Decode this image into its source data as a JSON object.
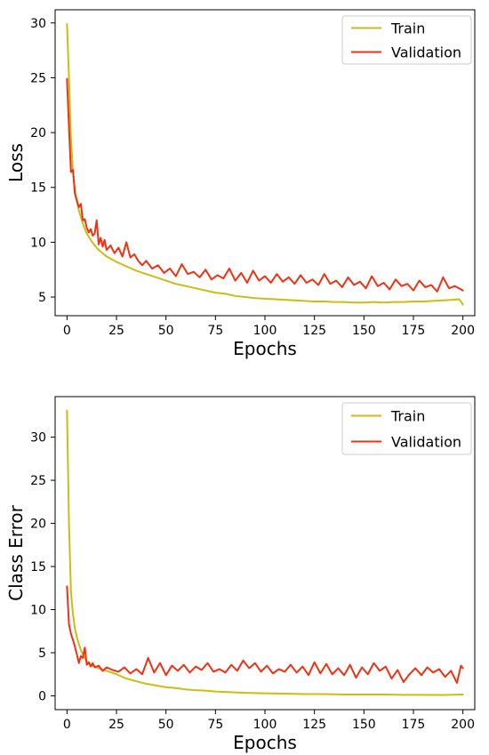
{
  "chart_data": [
    {
      "type": "line",
      "title": "",
      "xlabel": "Epochs",
      "ylabel": "Loss",
      "xlim": [
        -6,
        206
      ],
      "ylim": [
        3.3,
        31.2
      ],
      "xticks": [
        0,
        25,
        50,
        75,
        100,
        125,
        150,
        175,
        200
      ],
      "yticks": [
        5,
        10,
        15,
        20,
        25,
        30
      ],
      "legend_position": "top-right",
      "grid": false,
      "series": [
        {
          "name": "Train",
          "color": "#c8be14",
          "x": [
            0,
            1,
            2,
            3,
            4,
            5,
            6,
            7,
            8,
            9,
            10,
            12,
            14,
            16,
            18,
            20,
            25,
            30,
            35,
            40,
            45,
            50,
            55,
            60,
            65,
            70,
            75,
            80,
            85,
            90,
            95,
            100,
            105,
            110,
            115,
            120,
            125,
            130,
            135,
            140,
            145,
            150,
            155,
            160,
            165,
            170,
            175,
            180,
            185,
            190,
            195,
            198,
            199,
            200
          ],
          "y": [
            29.9,
            25.0,
            19.5,
            16.5,
            14.8,
            13.7,
            12.9,
            12.3,
            11.7,
            11.2,
            10.8,
            10.2,
            9.7,
            9.3,
            9.0,
            8.7,
            8.2,
            7.8,
            7.4,
            7.1,
            6.8,
            6.5,
            6.2,
            6.0,
            5.8,
            5.6,
            5.4,
            5.3,
            5.1,
            5.0,
            4.9,
            4.85,
            4.8,
            4.75,
            4.7,
            4.65,
            4.6,
            4.6,
            4.55,
            4.55,
            4.5,
            4.5,
            4.55,
            4.5,
            4.55,
            4.55,
            4.6,
            4.6,
            4.65,
            4.7,
            4.75,
            4.8,
            4.6,
            4.3
          ]
        },
        {
          "name": "Validation",
          "color": "#f03214",
          "x": [
            0,
            1,
            2,
            3,
            4,
            5,
            6,
            7,
            8,
            9,
            10,
            11,
            12,
            13,
            14,
            15,
            16,
            17,
            18,
            19,
            20,
            22,
            24,
            26,
            28,
            30,
            32,
            34,
            36,
            38,
            40,
            43,
            46,
            49,
            52,
            55,
            58,
            61,
            64,
            67,
            70,
            73,
            76,
            79,
            82,
            85,
            88,
            91,
            94,
            97,
            100,
            103,
            106,
            109,
            112,
            115,
            118,
            121,
            124,
            127,
            130,
            133,
            136,
            139,
            142,
            145,
            148,
            151,
            154,
            157,
            160,
            163,
            166,
            169,
            172,
            175,
            178,
            181,
            184,
            187,
            190,
            193,
            196,
            199,
            200
          ],
          "y": [
            24.9,
            20.5,
            16.4,
            16.6,
            14.4,
            13.8,
            13.2,
            13.5,
            12.0,
            12.1,
            11.3,
            10.9,
            11.2,
            10.6,
            10.8,
            12.0,
            9.8,
            10.4,
            9.6,
            10.2,
            9.3,
            9.7,
            9.0,
            9.5,
            8.7,
            10.0,
            8.6,
            8.9,
            8.3,
            7.9,
            8.3,
            7.6,
            7.9,
            7.2,
            7.6,
            6.9,
            8.0,
            7.1,
            7.3,
            6.8,
            7.5,
            6.6,
            7.0,
            6.7,
            7.6,
            6.5,
            7.2,
            6.3,
            7.4,
            6.5,
            6.9,
            6.3,
            7.1,
            6.4,
            6.8,
            6.2,
            7.0,
            6.3,
            6.6,
            6.1,
            7.1,
            6.2,
            6.5,
            5.9,
            6.8,
            6.1,
            6.4,
            5.8,
            6.9,
            6.0,
            6.3,
            5.7,
            6.6,
            6.0,
            6.2,
            5.6,
            6.5,
            5.9,
            6.1,
            5.5,
            6.8,
            5.8,
            6.0,
            5.7,
            5.6
          ]
        }
      ]
    },
    {
      "type": "line",
      "title": "",
      "xlabel": "Epochs",
      "ylabel": "Class Error",
      "xlim": [
        -6,
        206
      ],
      "ylim": [
        -1.6,
        34.7
      ],
      "xticks": [
        0,
        25,
        50,
        75,
        100,
        125,
        150,
        175,
        200
      ],
      "yticks": [
        0,
        5,
        10,
        15,
        20,
        25,
        30
      ],
      "legend_position": "top-right",
      "grid": false,
      "series": [
        {
          "name": "Train",
          "color": "#c8be14",
          "x": [
            0,
            1,
            2,
            3,
            4,
            5,
            6,
            7,
            8,
            9,
            10,
            12,
            14,
            16,
            18,
            20,
            25,
            30,
            35,
            40,
            45,
            50,
            55,
            60,
            65,
            70,
            75,
            80,
            85,
            90,
            100,
            110,
            120,
            130,
            140,
            150,
            160,
            170,
            180,
            190,
            200
          ],
          "y": [
            33.1,
            20.0,
            12.1,
            9.5,
            7.8,
            6.8,
            6.0,
            5.3,
            4.8,
            4.4,
            4.0,
            3.6,
            3.4,
            3.2,
            3.0,
            2.9,
            2.5,
            2.0,
            1.7,
            1.4,
            1.2,
            1.0,
            0.9,
            0.75,
            0.65,
            0.6,
            0.5,
            0.45,
            0.4,
            0.35,
            0.3,
            0.25,
            0.2,
            0.2,
            0.15,
            0.15,
            0.15,
            0.12,
            0.12,
            0.1,
            0.15
          ]
        },
        {
          "name": "Validation",
          "color": "#f03214",
          "x": [
            0,
            1,
            2,
            3,
            4,
            5,
            6,
            7,
            8,
            9,
            10,
            11,
            12,
            13,
            14,
            16,
            18,
            20,
            23,
            26,
            29,
            32,
            35,
            38,
            41,
            44,
            47,
            50,
            53,
            56,
            59,
            62,
            65,
            68,
            71,
            74,
            77,
            80,
            83,
            86,
            89,
            92,
            95,
            98,
            101,
            104,
            107,
            110,
            113,
            116,
            119,
            122,
            125,
            128,
            131,
            134,
            137,
            140,
            143,
            146,
            149,
            152,
            155,
            158,
            161,
            164,
            167,
            170,
            173,
            176,
            179,
            182,
            185,
            188,
            191,
            194,
            197,
            199,
            200
          ],
          "y": [
            12.7,
            8.3,
            7.2,
            6.5,
            5.7,
            4.8,
            3.8,
            4.6,
            4.4,
            5.6,
            3.6,
            3.9,
            3.4,
            3.8,
            3.3,
            3.5,
            2.9,
            3.3,
            3.0,
            2.8,
            3.3,
            2.6,
            3.1,
            2.5,
            4.4,
            2.7,
            3.8,
            2.4,
            3.5,
            2.9,
            3.6,
            2.7,
            3.4,
            3.0,
            3.8,
            2.8,
            3.1,
            2.7,
            3.6,
            2.9,
            4.1,
            3.2,
            3.8,
            2.8,
            3.5,
            2.6,
            3.1,
            2.8,
            3.6,
            2.7,
            3.4,
            2.4,
            3.9,
            2.6,
            3.7,
            2.5,
            3.2,
            2.4,
            3.6,
            2.1,
            3.3,
            2.5,
            3.8,
            2.9,
            3.4,
            2.0,
            3.0,
            1.6,
            2.5,
            3.2,
            2.4,
            3.3,
            2.7,
            3.1,
            2.2,
            2.9,
            1.5,
            3.5,
            3.2
          ]
        }
      ]
    }
  ]
}
